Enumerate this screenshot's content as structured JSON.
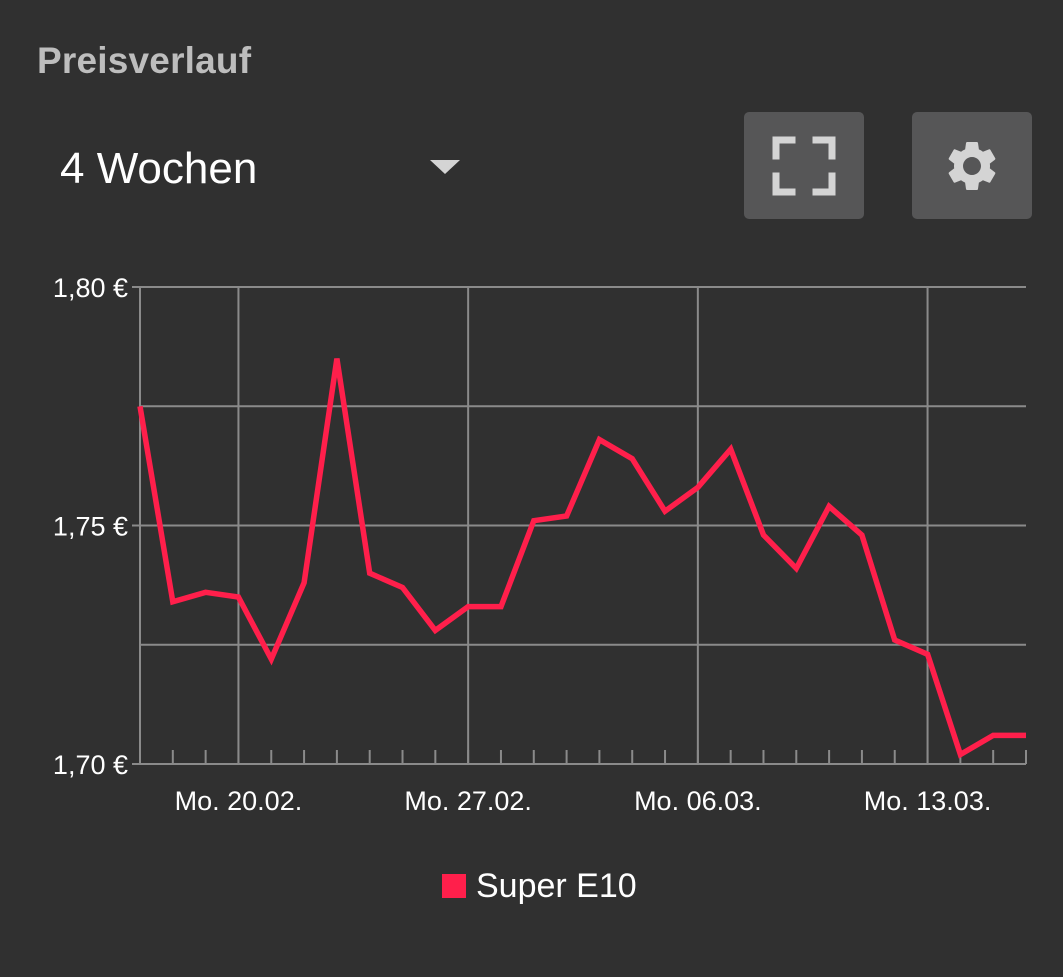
{
  "header": {
    "title": "Preisverlauf"
  },
  "range": {
    "value": "4 Wochen"
  },
  "toolbar": {
    "fullscreen_icon": "fullscreen-icon",
    "settings_icon": "gear-icon"
  },
  "colors": {
    "background": "#303030",
    "grid": "#8a8a8a",
    "series": "#ff1f4b",
    "button": "#565657",
    "icon": "#d4d4d4"
  },
  "chart_data": {
    "type": "line",
    "ylim": [
      1.7,
      1.8
    ],
    "ytick_labels": [
      {
        "value": 1.8,
        "label": "1,80 €"
      },
      {
        "value": 1.75,
        "label": "1,75 €"
      },
      {
        "value": 1.7,
        "label": "1,70 €"
      }
    ],
    "y_gridlines": [
      1.7,
      1.725,
      1.75,
      1.775,
      1.8
    ],
    "xlim": [
      "2023-02-17",
      "2023-03-16"
    ],
    "xtick_labels": [
      {
        "date": "2023-02-20",
        "label": "Mo. 20.02."
      },
      {
        "date": "2023-02-27",
        "label": "Mo. 27.02."
      },
      {
        "date": "2023-03-06",
        "label": "Mo. 06.03."
      },
      {
        "date": "2023-03-13",
        "label": "Mo. 13.03."
      }
    ],
    "grid": true,
    "legend": "bottom-center",
    "series": [
      {
        "name": "Super E10",
        "x": [
          "2023-02-17",
          "2023-02-18",
          "2023-02-19",
          "2023-02-20",
          "2023-02-21",
          "2023-02-22",
          "2023-02-23",
          "2023-02-24",
          "2023-02-25",
          "2023-02-26",
          "2023-02-27",
          "2023-02-28",
          "2023-03-01",
          "2023-03-02",
          "2023-03-03",
          "2023-03-04",
          "2023-03-05",
          "2023-03-06",
          "2023-03-07",
          "2023-03-08",
          "2023-03-09",
          "2023-03-10",
          "2023-03-11",
          "2023-03-12",
          "2023-03-13",
          "2023-03-14",
          "2023-03-15",
          "2023-03-16"
        ],
        "values": [
          1.775,
          1.734,
          1.736,
          1.735,
          1.722,
          1.738,
          1.785,
          1.74,
          1.737,
          1.728,
          1.733,
          1.733,
          1.751,
          1.752,
          1.768,
          1.764,
          1.753,
          1.758,
          1.766,
          1.748,
          1.741,
          1.754,
          1.748,
          1.726,
          1.723,
          1.702,
          1.706,
          1.706
        ]
      }
    ]
  }
}
